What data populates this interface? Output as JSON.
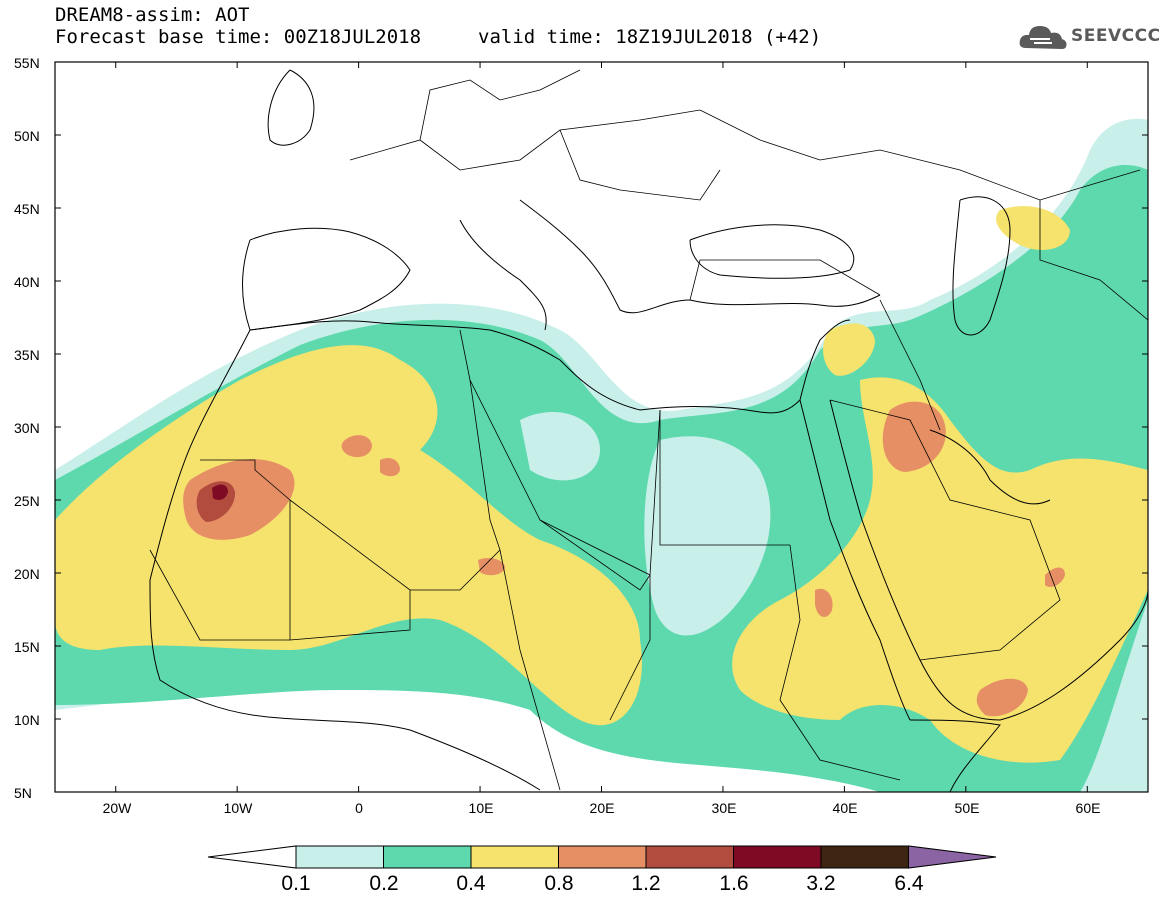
{
  "header": {
    "title": "DREAM8-assim: AOT",
    "base_time": "Forecast base time: 00Z18JUL2018",
    "valid_time": "valid time: 18Z19JUL2018 (+42)"
  },
  "logo": {
    "text": "SEEVCCC",
    "icon": "cloud-icon",
    "color": "#5a5a5a"
  },
  "map": {
    "lat_labels": [
      "55N",
      "50N",
      "45N",
      "40N",
      "35N",
      "30N",
      "25N",
      "20N",
      "15N",
      "10N",
      "5N"
    ],
    "lon_labels": [
      "20W",
      "10W",
      "0",
      "10E",
      "20E",
      "30E",
      "40E",
      "50E",
      "60E"
    ],
    "lat_range": [
      5,
      55
    ],
    "lon_range": [
      -25,
      65
    ]
  },
  "colorbar": {
    "labels": [
      "0.1",
      "0.2",
      "0.4",
      "0.8",
      "1.2",
      "1.6",
      "3.2",
      "6.4"
    ],
    "colors": [
      "#c8efe9",
      "#5ed9ae",
      "#f5e36e",
      "#e68f65",
      "#b24c3e",
      "#7f0a23",
      "#3e2512",
      "#8a64a3"
    ]
  }
}
